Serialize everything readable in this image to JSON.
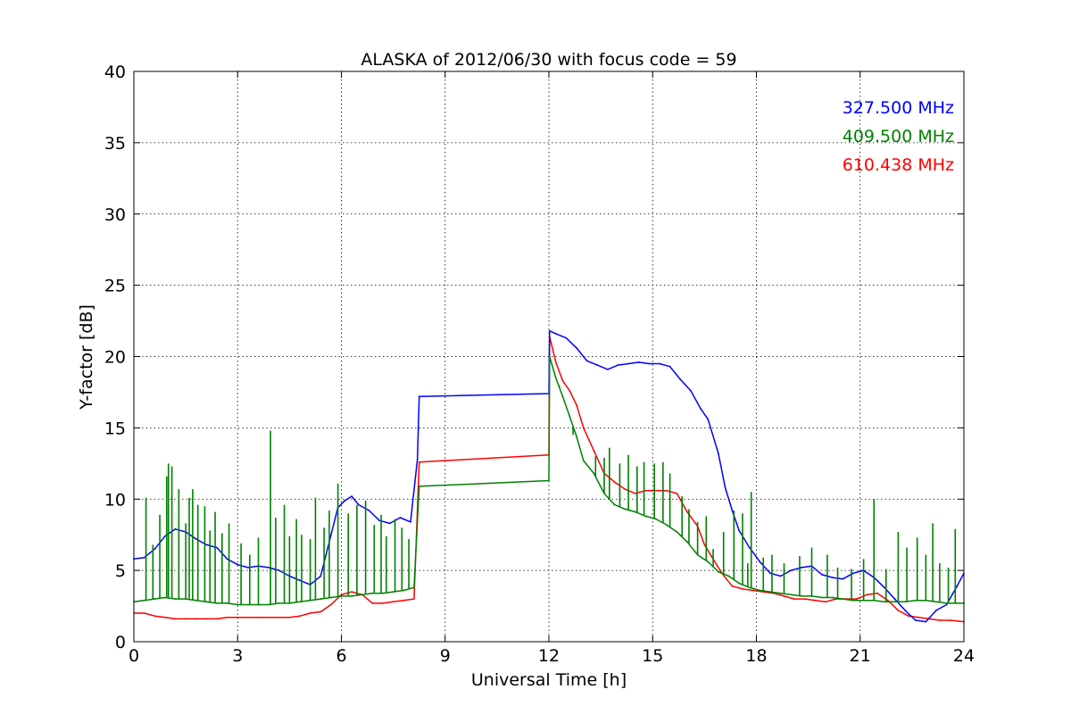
{
  "chart_data": {
    "type": "line",
    "title": "ALASKA of 2012/06/30 with focus code = 59",
    "xlabel": "Universal Time [h]",
    "ylabel": "Y-factor [dB]",
    "xlim": [
      0,
      24
    ],
    "ylim": [
      0,
      40
    ],
    "x_ticks": [
      "0",
      "3",
      "6",
      "9",
      "12",
      "15",
      "18",
      "21",
      "24"
    ],
    "y_ticks": [
      "0",
      "5",
      "10",
      "15",
      "20",
      "25",
      "30",
      "35",
      "40"
    ],
    "grid": true,
    "legend_position": "top-right",
    "series": [
      {
        "name": "327.500 MHz",
        "color": "#0000ff",
        "x": [
          0,
          0.3,
          0.6,
          0.9,
          1.2,
          1.5,
          1.8,
          2.1,
          2.4,
          2.7,
          3.0,
          3.3,
          3.6,
          3.9,
          4.2,
          4.5,
          4.8,
          5.1,
          5.4,
          5.7,
          5.9,
          6.1,
          6.3,
          6.5,
          6.8,
          7.1,
          7.4,
          7.7,
          8.0,
          8.2,
          8.25,
          12.0,
          12.02,
          12.2,
          12.5,
          12.8,
          13.1,
          13.4,
          13.7,
          14.0,
          14.3,
          14.6,
          14.9,
          15.2,
          15.5,
          15.8,
          16.1,
          16.4,
          16.6,
          16.9,
          17.1,
          17.3,
          17.5,
          17.8,
          18.1,
          18.4,
          18.7,
          19.0,
          19.3,
          19.6,
          19.9,
          20.2,
          20.5,
          20.8,
          21.1,
          21.4,
          21.7,
          22.0,
          22.3,
          22.6,
          22.9,
          23.2,
          23.5,
          23.8,
          24.0
        ],
        "y": [
          5.8,
          5.9,
          6.5,
          7.4,
          7.9,
          7.7,
          7.2,
          6.8,
          6.6,
          5.8,
          5.4,
          5.2,
          5.3,
          5.2,
          5.0,
          4.6,
          4.3,
          4.0,
          4.6,
          7.5,
          9.4,
          9.9,
          10.2,
          9.6,
          9.2,
          8.5,
          8.3,
          8.7,
          8.4,
          12.8,
          17.2,
          17.4,
          21.8,
          21.6,
          21.3,
          20.6,
          19.7,
          19.4,
          19.1,
          19.4,
          19.5,
          19.6,
          19.5,
          19.5,
          19.3,
          18.4,
          17.6,
          16.3,
          15.6,
          13.2,
          10.8,
          9.2,
          7.8,
          6.6,
          5.6,
          4.8,
          4.6,
          5.0,
          5.2,
          5.3,
          4.7,
          4.5,
          4.4,
          4.8,
          5.0,
          4.5,
          3.8,
          3.0,
          2.2,
          1.5,
          1.4,
          2.2,
          2.6,
          3.9,
          4.8
        ]
      },
      {
        "name": "409.500 MHz",
        "color": "#008000",
        "x": [
          0,
          0.3,
          0.6,
          0.9,
          1.2,
          1.5,
          1.8,
          2.1,
          2.4,
          2.7,
          3.0,
          3.3,
          3.6,
          3.9,
          4.2,
          4.5,
          4.8,
          5.1,
          5.4,
          5.7,
          6.0,
          6.3,
          6.6,
          6.9,
          7.2,
          7.5,
          7.8,
          8.1,
          8.25,
          12.0,
          12.02,
          12.2,
          12.4,
          12.6,
          12.8,
          13.0,
          13.3,
          13.6,
          13.9,
          14.2,
          14.5,
          14.8,
          15.1,
          15.4,
          15.7,
          16.0,
          16.3,
          16.6,
          16.9,
          17.2,
          17.5,
          17.8,
          18.1,
          18.4,
          18.7,
          19.0,
          19.3,
          19.6,
          19.9,
          20.2,
          20.5,
          20.8,
          21.1,
          21.4,
          21.7,
          22.0,
          22.3,
          22.6,
          22.9,
          23.2,
          23.5,
          23.8,
          24.0
        ],
        "y": [
          2.8,
          2.9,
          3.0,
          3.1,
          3.0,
          3.0,
          2.9,
          2.8,
          2.7,
          2.7,
          2.6,
          2.6,
          2.6,
          2.6,
          2.7,
          2.7,
          2.8,
          2.9,
          3.0,
          3.1,
          3.2,
          3.2,
          3.3,
          3.4,
          3.4,
          3.5,
          3.6,
          3.8,
          10.9,
          11.3,
          20.0,
          18.5,
          17.2,
          15.8,
          14.4,
          12.7,
          11.8,
          10.4,
          9.6,
          9.3,
          9.1,
          8.8,
          8.6,
          8.2,
          7.7,
          7.0,
          6.1,
          5.6,
          4.9,
          4.6,
          4.1,
          3.8,
          3.6,
          3.5,
          3.4,
          3.3,
          3.2,
          3.2,
          3.1,
          3.1,
          3.0,
          2.9,
          2.9,
          2.9,
          2.8,
          2.8,
          2.8,
          2.9,
          2.9,
          2.8,
          2.7,
          2.7,
          2.7
        ],
        "spikes": [
          {
            "x": 0.35,
            "y": 10.1
          },
          {
            "x": 0.55,
            "y": 6.8
          },
          {
            "x": 0.75,
            "y": 8.9
          },
          {
            "x": 0.95,
            "y": 11.6
          },
          {
            "x": 1.0,
            "y": 12.5
          },
          {
            "x": 1.1,
            "y": 12.3
          },
          {
            "x": 1.3,
            "y": 10.7
          },
          {
            "x": 1.5,
            "y": 8.3
          },
          {
            "x": 1.6,
            "y": 10.1
          },
          {
            "x": 1.7,
            "y": 10.7
          },
          {
            "x": 1.85,
            "y": 9.6
          },
          {
            "x": 2.05,
            "y": 9.5
          },
          {
            "x": 2.2,
            "y": 7.8
          },
          {
            "x": 2.35,
            "y": 9.1
          },
          {
            "x": 2.55,
            "y": 7.6
          },
          {
            "x": 2.75,
            "y": 8.3
          },
          {
            "x": 3.1,
            "y": 6.9
          },
          {
            "x": 3.35,
            "y": 6.1
          },
          {
            "x": 3.6,
            "y": 7.3
          },
          {
            "x": 3.95,
            "y": 14.8
          },
          {
            "x": 4.1,
            "y": 8.7
          },
          {
            "x": 4.35,
            "y": 9.6
          },
          {
            "x": 4.5,
            "y": 7.4
          },
          {
            "x": 4.7,
            "y": 8.6
          },
          {
            "x": 4.85,
            "y": 7.5
          },
          {
            "x": 5.1,
            "y": 7.2
          },
          {
            "x": 5.25,
            "y": 10.1
          },
          {
            "x": 5.5,
            "y": 8.0
          },
          {
            "x": 5.65,
            "y": 9.2
          },
          {
            "x": 5.9,
            "y": 11.1
          },
          {
            "x": 6.2,
            "y": 9.0
          },
          {
            "x": 6.45,
            "y": 9.6
          },
          {
            "x": 6.7,
            "y": 9.9
          },
          {
            "x": 6.95,
            "y": 8.2
          },
          {
            "x": 7.15,
            "y": 8.9
          },
          {
            "x": 7.3,
            "y": 7.4
          },
          {
            "x": 7.55,
            "y": 8.6
          },
          {
            "x": 7.75,
            "y": 8.0
          },
          {
            "x": 7.95,
            "y": 7.2
          },
          {
            "x": 12.3,
            "y": 18.0
          },
          {
            "x": 12.45,
            "y": 16.8
          },
          {
            "x": 12.7,
            "y": 14.5
          },
          {
            "x": 13.35,
            "y": 13.0
          },
          {
            "x": 13.6,
            "y": 12.9
          },
          {
            "x": 13.75,
            "y": 13.6
          },
          {
            "x": 14.05,
            "y": 12.5
          },
          {
            "x": 14.3,
            "y": 13.1
          },
          {
            "x": 14.55,
            "y": 12.3
          },
          {
            "x": 14.75,
            "y": 12.6
          },
          {
            "x": 15.05,
            "y": 12.5
          },
          {
            "x": 15.3,
            "y": 12.6
          },
          {
            "x": 15.5,
            "y": 11.8
          },
          {
            "x": 15.85,
            "y": 10.2
          },
          {
            "x": 16.05,
            "y": 9.3
          },
          {
            "x": 16.3,
            "y": 8.4
          },
          {
            "x": 16.55,
            "y": 8.8
          },
          {
            "x": 16.75,
            "y": 6.5
          },
          {
            "x": 17.05,
            "y": 7.7
          },
          {
            "x": 17.35,
            "y": 9.2
          },
          {
            "x": 17.6,
            "y": 9.0
          },
          {
            "x": 17.75,
            "y": 5.5
          },
          {
            "x": 17.85,
            "y": 10.5
          },
          {
            "x": 18.2,
            "y": 5.9
          },
          {
            "x": 18.45,
            "y": 6.1
          },
          {
            "x": 18.8,
            "y": 5.5
          },
          {
            "x": 19.25,
            "y": 6.0
          },
          {
            "x": 19.6,
            "y": 6.6
          },
          {
            "x": 20.05,
            "y": 6.1
          },
          {
            "x": 20.35,
            "y": 5.2
          },
          {
            "x": 20.75,
            "y": 5.1
          },
          {
            "x": 21.1,
            "y": 5.8
          },
          {
            "x": 21.4,
            "y": 10.0
          },
          {
            "x": 21.75,
            "y": 5.1
          },
          {
            "x": 22.1,
            "y": 7.7
          },
          {
            "x": 22.35,
            "y": 6.6
          },
          {
            "x": 22.65,
            "y": 7.3
          },
          {
            "x": 22.9,
            "y": 6.1
          },
          {
            "x": 23.1,
            "y": 8.3
          },
          {
            "x": 23.3,
            "y": 5.5
          },
          {
            "x": 23.55,
            "y": 5.2
          },
          {
            "x": 23.75,
            "y": 7.9
          }
        ]
      },
      {
        "name": "610.438 MHz",
        "color": "#ff0000",
        "x": [
          0,
          0.3,
          0.6,
          0.9,
          1.2,
          1.5,
          1.8,
          2.1,
          2.4,
          2.7,
          3.0,
          3.3,
          3.6,
          3.9,
          4.2,
          4.5,
          4.8,
          5.1,
          5.4,
          5.7,
          6.0,
          6.3,
          6.6,
          6.9,
          7.2,
          7.5,
          7.8,
          8.1,
          8.25,
          12.0,
          12.02,
          12.2,
          12.4,
          12.6,
          12.8,
          13.0,
          13.3,
          13.6,
          13.9,
          14.2,
          14.5,
          14.8,
          15.1,
          15.4,
          15.7,
          16.0,
          16.3,
          16.5,
          16.7,
          17.0,
          17.3,
          17.6,
          17.9,
          18.2,
          18.5,
          18.8,
          19.1,
          19.4,
          19.7,
          20.0,
          20.3,
          20.6,
          20.9,
          21.2,
          21.5,
          21.8,
          22.1,
          22.4,
          22.7,
          23.0,
          23.3,
          23.6,
          24.0
        ],
        "y": [
          2.0,
          2.0,
          1.8,
          1.7,
          1.6,
          1.6,
          1.6,
          1.6,
          1.6,
          1.7,
          1.7,
          1.7,
          1.7,
          1.7,
          1.7,
          1.7,
          1.8,
          2.0,
          2.1,
          2.6,
          3.3,
          3.5,
          3.3,
          2.7,
          2.7,
          2.8,
          2.9,
          3.0,
          12.6,
          13.1,
          21.4,
          19.6,
          18.3,
          17.6,
          16.6,
          15.0,
          13.4,
          11.8,
          11.2,
          10.7,
          10.4,
          10.6,
          10.6,
          10.6,
          10.4,
          9.1,
          8.1,
          6.8,
          6.0,
          4.8,
          3.9,
          3.7,
          3.6,
          3.5,
          3.4,
          3.2,
          3.0,
          3.0,
          2.9,
          2.8,
          3.0,
          3.0,
          3.0,
          3.3,
          3.4,
          2.9,
          2.2,
          1.8,
          1.7,
          1.6,
          1.5,
          1.5,
          1.4
        ]
      }
    ]
  }
}
